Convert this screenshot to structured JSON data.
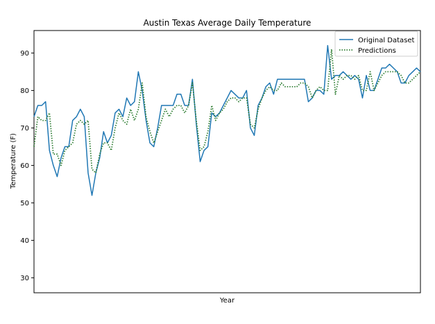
{
  "chart_data": {
    "type": "line",
    "title": "Austin Texas Average Daily Temperature",
    "xlabel": "Year",
    "ylabel": "Temperature (F)",
    "ylim": [
      26,
      96
    ],
    "yticks": [
      30,
      40,
      50,
      60,
      70,
      80,
      90
    ],
    "x_tick_labels_shown": false,
    "grid": false,
    "legend_position": "top-right",
    "series": [
      {
        "name": "Original Dataset",
        "color": "#1f77b4",
        "style": "solid",
        "values": [
          73,
          76,
          76,
          77,
          64,
          60,
          57,
          62,
          65,
          65,
          72,
          73,
          75,
          73,
          58,
          52,
          58,
          62,
          69,
          66,
          68,
          74,
          75,
          73,
          78,
          76,
          77,
          85,
          80,
          72,
          66,
          65,
          70,
          76,
          76,
          76,
          76,
          79,
          79,
          76,
          76,
          83,
          71,
          61,
          64,
          65,
          74,
          73,
          74,
          76,
          78,
          80,
          79,
          78,
          78,
          80,
          70,
          68,
          76,
          78,
          81,
          82,
          79,
          83,
          83,
          83,
          83,
          83,
          83,
          83,
          83,
          77,
          78,
          80,
          80,
          79,
          92,
          83,
          84,
          84,
          85,
          84,
          83,
          84,
          83,
          78,
          84,
          80,
          80,
          83,
          86,
          86,
          87,
          86,
          85,
          82,
          82,
          84,
          85,
          86,
          85
        ]
      },
      {
        "name": "Predictions",
        "color": "#2e7d32",
        "style": "dotted",
        "values": [
          65,
          73,
          72,
          72,
          74,
          63,
          63,
          60,
          64,
          65,
          66,
          71,
          72,
          71,
          72,
          59,
          58,
          63,
          66,
          66,
          64,
          70,
          74,
          72,
          71,
          75,
          72,
          75,
          82,
          73,
          69,
          66,
          69,
          72,
          75,
          73,
          75,
          76,
          76,
          74,
          76,
          82,
          72,
          64,
          65,
          69,
          76,
          72,
          74,
          75,
          77,
          78,
          78,
          77,
          78,
          78,
          71,
          70,
          75,
          78,
          80,
          81,
          80,
          80,
          82,
          81,
          81,
          81,
          81,
          82,
          82,
          81,
          78,
          80,
          81,
          80,
          80,
          91,
          79,
          84,
          83,
          84,
          84,
          83,
          84,
          80,
          80,
          85,
          80,
          82,
          84,
          85,
          85,
          85,
          85,
          84,
          82,
          82,
          83,
          84,
          85
        ]
      }
    ]
  }
}
